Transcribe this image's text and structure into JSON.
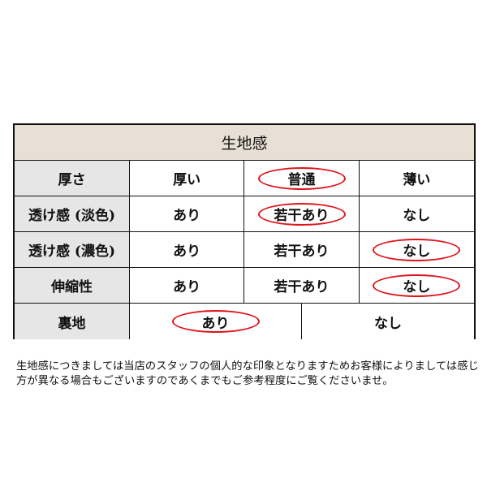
{
  "title": "生地感",
  "rows": [
    {
      "label": "厚さ",
      "options": [
        "厚い",
        "普通",
        "薄い"
      ],
      "selected": 1
    },
    {
      "label": "透け感 (淡色)",
      "options": [
        "あり",
        "若干あり",
        "なし"
      ],
      "selected": 1
    },
    {
      "label": "透け感 (濃色)",
      "options": [
        "あり",
        "若干あり",
        "なし"
      ],
      "selected": 2
    },
    {
      "label": "伸縮性",
      "options": [
        "あり",
        "若干あり",
        "なし"
      ],
      "selected": 2
    },
    {
      "label": "裏地",
      "options": [
        "あり",
        "なし"
      ],
      "selected": 0
    }
  ],
  "note": "生地感につきましては当店のスタッフの個人的な印象となりますためお客様によりましては感じ方が異なる場合もございますのであくまでもご参考程度にご覧くださいませ。",
  "colors": {
    "header_bg": "#e9e0d5",
    "label_bg": "#e6e6e6",
    "highlight": "#e0141b"
  }
}
